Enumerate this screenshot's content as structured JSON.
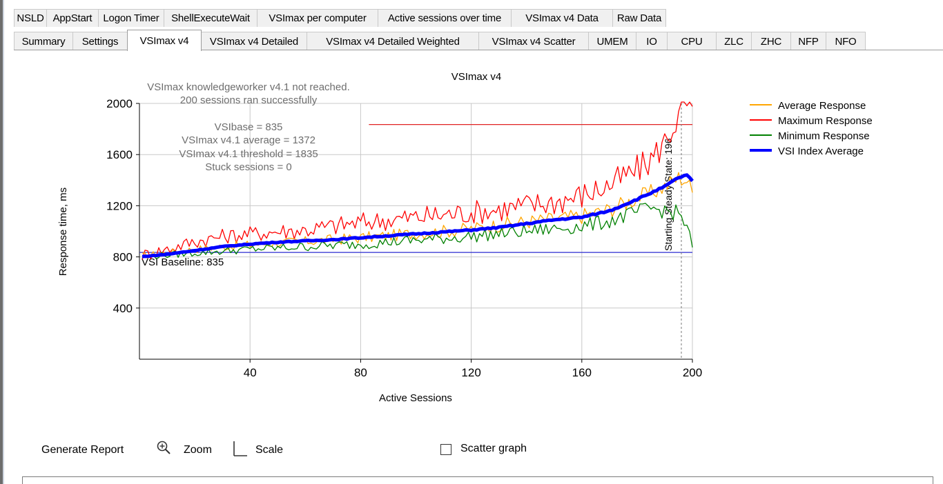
{
  "tabs_row1": [
    "NSLD",
    "AppStart",
    "Logon Timer",
    "ShellExecuteWait",
    "VSImax per computer",
    "Active sessions over time",
    "VSImax v4 Data",
    "Raw Data"
  ],
  "tabs_row2": [
    "Summary",
    "Settings",
    "VSImax v4",
    "VSImax v4 Detailed",
    "VSImax v4 Detailed Weighted",
    "VSImax v4 Scatter",
    "UMEM",
    "IO",
    "CPU",
    "ZLC",
    "ZHC",
    "NFP",
    "NFO"
  ],
  "active_tab": "VSImax v4",
  "chart_info": {
    "not_reached": "VSImax knowledgeworker v4.1 not reached.",
    "sessions_ok": "200 sessions ran successfully",
    "vsibase": "VSIbase = 835",
    "vsimax_avg": "VSImax v4.1 average = 1372",
    "vsimax_threshold": "VSImax v4.1 threshold = 1835",
    "stuck": "Stuck sessions = 0",
    "baseline_label": "VSI Baseline: 835",
    "steady_state_label": "Starting Steady State: 196"
  },
  "chart_data": {
    "type": "line",
    "title": "VSImax v4",
    "xlabel": "Active Sessions",
    "ylabel": "Response time, ms",
    "xlim": [
      0,
      200
    ],
    "ylim": [
      0,
      2000
    ],
    "xticks": [
      40,
      80,
      120,
      160,
      200
    ],
    "yticks": [
      400,
      800,
      1200,
      1600,
      2000
    ],
    "grid": true,
    "legend_position": "right",
    "baseline": 835,
    "threshold": 1835,
    "steady_state_x": 196,
    "x": [
      0,
      10,
      20,
      30,
      40,
      50,
      60,
      70,
      80,
      90,
      100,
      110,
      120,
      130,
      140,
      150,
      160,
      170,
      180,
      185,
      190,
      195,
      198,
      200
    ],
    "series": [
      {
        "name": "Average Response",
        "color": "#ffa500",
        "values": [
          805,
          830,
          860,
          880,
          895,
          910,
          920,
          935,
          950,
          965,
          985,
          1000,
          1020,
          1050,
          1075,
          1095,
          1120,
          1170,
          1260,
          1300,
          1350,
          1420,
          1400,
          1300
        ]
      },
      {
        "name": "Maximum Response",
        "color": "#ff0000",
        "values": [
          810,
          860,
          920,
          960,
          980,
          1000,
          1010,
          1040,
          1070,
          1090,
          1110,
          1130,
          1150,
          1170,
          1200,
          1230,
          1280,
          1360,
          1480,
          1560,
          1700,
          1900,
          2000,
          1950
        ]
      },
      {
        "name": "Minimum Response",
        "color": "#008000",
        "values": [
          800,
          815,
          830,
          845,
          860,
          870,
          880,
          890,
          900,
          915,
          930,
          945,
          960,
          980,
          1000,
          1020,
          1040,
          1080,
          1150,
          1180,
          1160,
          1140,
          1050,
          850
        ]
      },
      {
        "name": "VSI Index Average",
        "color": "#0000ff",
        "values": [
          800,
          820,
          850,
          880,
          900,
          915,
          925,
          935,
          950,
          965,
          980,
          995,
          1010,
          1030,
          1060,
          1090,
          1110,
          1160,
          1250,
          1300,
          1350,
          1420,
          1440,
          1390
        ]
      }
    ]
  },
  "bottom": {
    "generate_report": "Generate Report",
    "zoom": "Zoom",
    "scale": "Scale",
    "scatter": "Scatter graph"
  }
}
